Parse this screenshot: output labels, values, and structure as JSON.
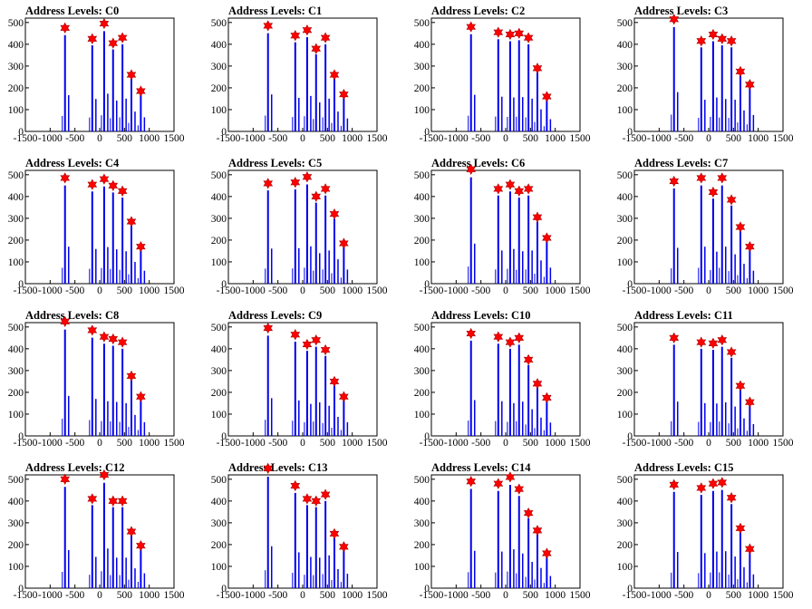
{
  "chart_data": [
    {
      "type": "bar",
      "title": "Address Levels: C0",
      "xlim": [
        -1500,
        1500
      ],
      "ylim": [
        0,
        500
      ],
      "yticks": [
        0,
        100,
        200,
        300,
        400,
        500
      ],
      "xticks": [
        -1500,
        -1000,
        -500,
        0,
        500,
        1000,
        1500
      ],
      "xticklabels": [
        "-1500",
        "-1000",
        "-500",
        "0",
        "500",
        "1000",
        "1500"
      ],
      "peaks": [
        {
          "x": -700,
          "y": 475
        },
        {
          "x": -150,
          "y": 425
        },
        {
          "x": 90,
          "y": 495
        },
        {
          "x": 270,
          "y": 405
        },
        {
          "x": 460,
          "y": 430
        },
        {
          "x": 640,
          "y": 260
        },
        {
          "x": 830,
          "y": 185
        }
      ]
    },
    {
      "type": "bar",
      "title": "Address Levels: C1",
      "xlim": [
        -1500,
        1500
      ],
      "ylim": [
        0,
        500
      ],
      "yticks": [
        0,
        100,
        200,
        300,
        400,
        500
      ],
      "xticks": [
        -1500,
        -1000,
        -500,
        0,
        500,
        1000,
        1500
      ],
      "xticklabels": [
        "-1500",
        "-1000",
        "-500",
        "0",
        "500",
        "1000",
        "1500"
      ],
      "peaks": [
        {
          "x": -700,
          "y": 485
        },
        {
          "x": -150,
          "y": 440
        },
        {
          "x": 90,
          "y": 465
        },
        {
          "x": 270,
          "y": 380
        },
        {
          "x": 460,
          "y": 430
        },
        {
          "x": 640,
          "y": 260
        },
        {
          "x": 830,
          "y": 170
        }
      ]
    },
    {
      "type": "bar",
      "title": "Address Levels: C2",
      "xlim": [
        -1500,
        1500
      ],
      "ylim": [
        0,
        500
      ],
      "yticks": [
        0,
        100,
        200,
        300,
        400,
        500
      ],
      "xticks": [
        -1500,
        -1000,
        -500,
        0,
        500,
        1000,
        1500
      ],
      "xticklabels": [
        "-1500",
        "-1000",
        "-500",
        "0",
        "500",
        "1000",
        "1500"
      ],
      "peaks": [
        {
          "x": -700,
          "y": 480
        },
        {
          "x": -150,
          "y": 455
        },
        {
          "x": 90,
          "y": 445
        },
        {
          "x": 270,
          "y": 450
        },
        {
          "x": 460,
          "y": 430
        },
        {
          "x": 640,
          "y": 290
        },
        {
          "x": 830,
          "y": 160
        }
      ]
    },
    {
      "type": "bar",
      "title": "Address Levels: C3",
      "xlim": [
        -1500,
        1500
      ],
      "ylim": [
        0,
        500
      ],
      "yticks": [
        0,
        100,
        200,
        300,
        400,
        500
      ],
      "xticks": [
        -1500,
        -1000,
        -500,
        0,
        500,
        1000,
        1500
      ],
      "xticklabels": [
        "-1500",
        "-1000",
        "-500",
        "0",
        "500",
        "1000",
        "1500"
      ],
      "peaks": [
        {
          "x": -700,
          "y": 515
        },
        {
          "x": -150,
          "y": 415
        },
        {
          "x": 90,
          "y": 445
        },
        {
          "x": 270,
          "y": 425
        },
        {
          "x": 460,
          "y": 415
        },
        {
          "x": 640,
          "y": 275
        },
        {
          "x": 830,
          "y": 215
        }
      ]
    },
    {
      "type": "bar",
      "title": "Address Levels: C4",
      "xlim": [
        -1500,
        1500
      ],
      "ylim": [
        0,
        500
      ],
      "yticks": [
        0,
        100,
        200,
        300,
        400,
        500
      ],
      "xticks": [
        -1500,
        -1000,
        -500,
        0,
        500,
        1000,
        1500
      ],
      "xticklabels": [
        "-1500",
        "-1000",
        "-500",
        "0",
        "500",
        "1000",
        "1500"
      ],
      "peaks": [
        {
          "x": -700,
          "y": 485
        },
        {
          "x": -150,
          "y": 455
        },
        {
          "x": 90,
          "y": 480
        },
        {
          "x": 270,
          "y": 450
        },
        {
          "x": 460,
          "y": 425
        },
        {
          "x": 640,
          "y": 285
        },
        {
          "x": 830,
          "y": 170
        }
      ]
    },
    {
      "type": "bar",
      "title": "Address Levels: C5",
      "xlim": [
        -1500,
        1500
      ],
      "ylim": [
        0,
        500
      ],
      "yticks": [
        0,
        100,
        200,
        300,
        400,
        500
      ],
      "xticks": [
        -1500,
        -1000,
        -500,
        0,
        500,
        1000,
        1500
      ],
      "xticklabels": [
        "-1500",
        "-1000",
        "-500",
        "0",
        "500",
        "1000",
        "1500"
      ],
      "peaks": [
        {
          "x": -700,
          "y": 460
        },
        {
          "x": -150,
          "y": 465
        },
        {
          "x": 90,
          "y": 490
        },
        {
          "x": 270,
          "y": 400
        },
        {
          "x": 460,
          "y": 435
        },
        {
          "x": 640,
          "y": 320
        },
        {
          "x": 830,
          "y": 185
        }
      ]
    },
    {
      "type": "bar",
      "title": "Address Levels: C6",
      "xlim": [
        -1500,
        1500
      ],
      "ylim": [
        0,
        500
      ],
      "yticks": [
        0,
        100,
        200,
        300,
        400,
        500
      ],
      "xticks": [
        -1500,
        -1000,
        -500,
        0,
        500,
        1000,
        1500
      ],
      "xticklabels": [
        "-1500",
        "-1000",
        "-500",
        "0",
        "500",
        "1000",
        "1500"
      ],
      "peaks": [
        {
          "x": -700,
          "y": 525
        },
        {
          "x": -150,
          "y": 435
        },
        {
          "x": 90,
          "y": 455
        },
        {
          "x": 270,
          "y": 425
        },
        {
          "x": 460,
          "y": 435
        },
        {
          "x": 640,
          "y": 305
        },
        {
          "x": 830,
          "y": 210
        }
      ]
    },
    {
      "type": "bar",
      "title": "Address Levels: C7",
      "xlim": [
        -1500,
        1500
      ],
      "ylim": [
        0,
        500
      ],
      "yticks": [
        0,
        100,
        200,
        300,
        400,
        500
      ],
      "xticks": [
        -1500,
        -1000,
        -500,
        0,
        500,
        1000,
        1500
      ],
      "xticklabels": [
        "-1500",
        "-1000",
        "-500",
        "0",
        "500",
        "1000",
        "1500"
      ],
      "peaks": [
        {
          "x": -700,
          "y": 470
        },
        {
          "x": -150,
          "y": 485
        },
        {
          "x": 90,
          "y": 420
        },
        {
          "x": 270,
          "y": 485
        },
        {
          "x": 460,
          "y": 385
        },
        {
          "x": 640,
          "y": 260
        },
        {
          "x": 830,
          "y": 170
        }
      ]
    },
    {
      "type": "bar",
      "title": "Address Levels: C8",
      "xlim": [
        -1500,
        1500
      ],
      "ylim": [
        0,
        500
      ],
      "yticks": [
        0,
        100,
        200,
        300,
        400,
        500
      ],
      "xticks": [
        -1500,
        -1000,
        -500,
        0,
        500,
        1000,
        1500
      ],
      "xticklabels": [
        "-1500",
        "-1000",
        "-500",
        "0",
        "500",
        "1000",
        "1500"
      ],
      "peaks": [
        {
          "x": -700,
          "y": 525
        },
        {
          "x": -150,
          "y": 485
        },
        {
          "x": 90,
          "y": 455
        },
        {
          "x": 270,
          "y": 445
        },
        {
          "x": 460,
          "y": 430
        },
        {
          "x": 640,
          "y": 275
        },
        {
          "x": 830,
          "y": 180
        }
      ]
    },
    {
      "type": "bar",
      "title": "Address Levels: C9",
      "xlim": [
        -1500,
        1500
      ],
      "ylim": [
        0,
        500
      ],
      "yticks": [
        0,
        100,
        200,
        300,
        400,
        500
      ],
      "xticks": [
        -1500,
        -1000,
        -500,
        0,
        500,
        1000,
        1500
      ],
      "xticklabels": [
        "-1500",
        "-1000",
        "-500",
        "0",
        "500",
        "1000",
        "1500"
      ],
      "peaks": [
        {
          "x": -700,
          "y": 495
        },
        {
          "x": -150,
          "y": 465
        },
        {
          "x": 90,
          "y": 420
        },
        {
          "x": 270,
          "y": 440
        },
        {
          "x": 460,
          "y": 395
        },
        {
          "x": 640,
          "y": 250
        },
        {
          "x": 830,
          "y": 180
        }
      ]
    },
    {
      "type": "bar",
      "title": "Address Levels: C10",
      "xlim": [
        -1500,
        1500
      ],
      "ylim": [
        0,
        500
      ],
      "yticks": [
        0,
        100,
        200,
        300,
        400,
        500
      ],
      "xticks": [
        -1500,
        -1000,
        -500,
        0,
        500,
        1000,
        1500
      ],
      "xticklabels": [
        "-1500",
        "-1000",
        "-500",
        "0",
        "500",
        "1000",
        "1500"
      ],
      "peaks": [
        {
          "x": -700,
          "y": 470
        },
        {
          "x": -150,
          "y": 455
        },
        {
          "x": 90,
          "y": 430
        },
        {
          "x": 270,
          "y": 450
        },
        {
          "x": 460,
          "y": 350
        },
        {
          "x": 640,
          "y": 240
        },
        {
          "x": 830,
          "y": 175
        }
      ]
    },
    {
      "type": "bar",
      "title": "Address Levels: C11",
      "xlim": [
        -1500,
        1500
      ],
      "ylim": [
        0,
        500
      ],
      "yticks": [
        0,
        100,
        200,
        300,
        400,
        500
      ],
      "xticks": [
        -1500,
        -1000,
        -500,
        0,
        500,
        1000,
        1500
      ],
      "xticklabels": [
        "-1500",
        "-1000",
        "-500",
        "0",
        "500",
        "1000",
        "1500"
      ],
      "peaks": [
        {
          "x": -700,
          "y": 450
        },
        {
          "x": -150,
          "y": 430
        },
        {
          "x": 90,
          "y": 425
        },
        {
          "x": 270,
          "y": 440
        },
        {
          "x": 460,
          "y": 385
        },
        {
          "x": 640,
          "y": 230
        },
        {
          "x": 830,
          "y": 155
        }
      ]
    },
    {
      "type": "bar",
      "title": "Address Levels: C12",
      "xlim": [
        -1500,
        1500
      ],
      "ylim": [
        0,
        500
      ],
      "yticks": [
        0,
        100,
        200,
        300,
        400,
        500
      ],
      "xticks": [
        -1500,
        -1000,
        -500,
        0,
        500,
        1000,
        1500
      ],
      "xticklabels": [
        "-1500",
        "-1000",
        "-500",
        "0",
        "500",
        "1000",
        "1500"
      ],
      "peaks": [
        {
          "x": -700,
          "y": 500
        },
        {
          "x": -150,
          "y": 410
        },
        {
          "x": 90,
          "y": 520
        },
        {
          "x": 270,
          "y": 400
        },
        {
          "x": 460,
          "y": 400
        },
        {
          "x": 640,
          "y": 260
        },
        {
          "x": 830,
          "y": 195
        }
      ]
    },
    {
      "type": "bar",
      "title": "Address Levels: C13",
      "xlim": [
        -1500,
        1500
      ],
      "ylim": [
        0,
        500
      ],
      "yticks": [
        0,
        100,
        200,
        300,
        400,
        500
      ],
      "xticks": [
        -1500,
        -1000,
        -500,
        0,
        500,
        1000,
        1500
      ],
      "xticklabels": [
        "-1500",
        "-1000",
        "-500",
        "0",
        "500",
        "1000",
        "1500"
      ],
      "peaks": [
        {
          "x": -700,
          "y": 550
        },
        {
          "x": -150,
          "y": 470
        },
        {
          "x": 90,
          "y": 410
        },
        {
          "x": 270,
          "y": 400
        },
        {
          "x": 460,
          "y": 430
        },
        {
          "x": 640,
          "y": 250
        },
        {
          "x": 830,
          "y": 190
        }
      ]
    },
    {
      "type": "bar",
      "title": "Address Levels: C14",
      "xlim": [
        -1500,
        1500
      ],
      "ylim": [
        0,
        500
      ],
      "yticks": [
        0,
        100,
        200,
        300,
        400,
        500
      ],
      "xticks": [
        -1500,
        -1000,
        -500,
        0,
        500,
        1000,
        1500
      ],
      "xticklabels": [
        "-1500",
        "-1000",
        "-500",
        "0",
        "500",
        "1000",
        "1500"
      ],
      "peaks": [
        {
          "x": -700,
          "y": 490
        },
        {
          "x": -150,
          "y": 480
        },
        {
          "x": 90,
          "y": 510
        },
        {
          "x": 270,
          "y": 455
        },
        {
          "x": 460,
          "y": 345
        },
        {
          "x": 640,
          "y": 265
        },
        {
          "x": 830,
          "y": 160
        }
      ]
    },
    {
      "type": "bar",
      "title": "Address Levels: C15",
      "xlim": [
        -1500,
        1500
      ],
      "ylim": [
        0,
        500
      ],
      "yticks": [
        0,
        100,
        200,
        300,
        400,
        500
      ],
      "xticks": [
        -1500,
        -1000,
        -500,
        0,
        500,
        1000,
        1500
      ],
      "xticklabels": [
        "-1500",
        "-1000",
        "-500",
        "0",
        "500",
        "1000",
        "1500"
      ],
      "peaks": [
        {
          "x": -700,
          "y": 475
        },
        {
          "x": -150,
          "y": 460
        },
        {
          "x": 90,
          "y": 480
        },
        {
          "x": 270,
          "y": 485
        },
        {
          "x": 460,
          "y": 415
        },
        {
          "x": 640,
          "y": 275
        },
        {
          "x": 830,
          "y": 180
        }
      ]
    }
  ],
  "colors": {
    "bar": "#0000ee",
    "marker": "#ff0000",
    "axis": "#000000"
  }
}
